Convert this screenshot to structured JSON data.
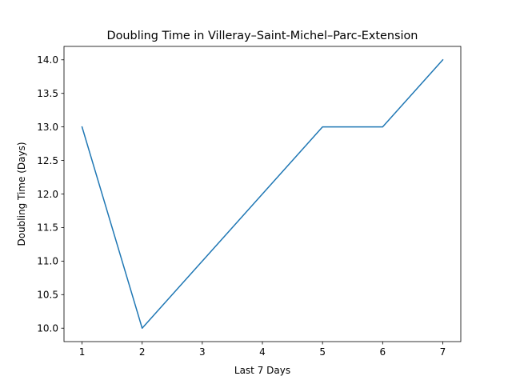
{
  "chart_data": {
    "type": "line",
    "title": "Doubling Time in  Villeray–Saint-Michel–Parc-Extension",
    "xlabel": "Last 7 Days",
    "ylabel": "Doubling Time (Days)",
    "x": [
      1,
      2,
      3,
      4,
      5,
      6,
      7
    ],
    "series": [
      {
        "values": [
          13,
          10,
          11,
          12,
          13,
          13,
          14
        ],
        "color": "#1f77b4"
      }
    ],
    "xticks": [
      "1",
      "2",
      "3",
      "4",
      "5",
      "6",
      "7"
    ],
    "yticks": [
      "10.0",
      "10.5",
      "11.0",
      "11.5",
      "12.0",
      "12.5",
      "13.0",
      "13.5",
      "14.0"
    ],
    "xlim": [
      0.7,
      7.3
    ],
    "ylim": [
      9.8,
      14.2
    ],
    "grid": false
  }
}
